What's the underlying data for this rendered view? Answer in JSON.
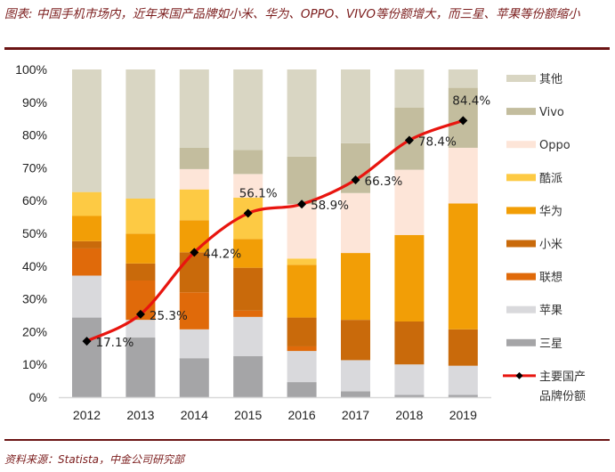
{
  "caption": "图表: 中国手机市场内，近年来国产品牌如小米、华为、OPPO、VIVO等份额增大，而三星、苹果等份额缩小",
  "source": "资料来源：Statista，中金公司研究部",
  "chart_data": {
    "type": "bar",
    "stacked": true,
    "title": "图表: 中国手机市场内，近年来国产品牌如小米、华为、OPPO、VIVO等份额增大，而三星、苹果等份额缩小",
    "xlabel": "",
    "ylabel": "",
    "ylim": [
      0,
      100
    ],
    "y_ticks": [
      "0%",
      "10%",
      "20%",
      "30%",
      "40%",
      "50%",
      "60%",
      "70%",
      "80%",
      "90%",
      "100%"
    ],
    "categories": [
      "2012",
      "2013",
      "2014",
      "2015",
      "2016",
      "2017",
      "2018",
      "2019"
    ],
    "legend_position": "right",
    "grid": false,
    "series": [
      {
        "name": "三星",
        "color": "#a5a5a7",
        "values": [
          24.3,
          18.2,
          11.9,
          12.5,
          4.6,
          1.8,
          0.7,
          0.7
        ]
      },
      {
        "name": "苹果",
        "color": "#d9d9dc",
        "values": [
          12.8,
          5.4,
          8.8,
          12.0,
          9.5,
          9.5,
          9.3,
          8.9
        ]
      },
      {
        "name": "联想",
        "color": "#e06a0a",
        "values": [
          8.3,
          12.0,
          11.3,
          1.9,
          1.4,
          0,
          0,
          0
        ]
      },
      {
        "name": "小米",
        "color": "#c96a0b",
        "values": [
          2.2,
          5.2,
          12.2,
          13.1,
          8.8,
          12.3,
          13.1,
          11.1
        ]
      },
      {
        "name": "华为",
        "color": "#f29e06",
        "values": [
          7.7,
          9.1,
          9.8,
          8.8,
          16.1,
          20.4,
          26.4,
          38.4
        ]
      },
      {
        "name": "酷派",
        "color": "#fdca44",
        "values": [
          7.3,
          10.7,
          9.4,
          12.6,
          1.9,
          0,
          0,
          0
        ]
      },
      {
        "name": "Oppo",
        "color": "#fde5d8",
        "values": [
          0,
          0,
          6.2,
          7.2,
          16.6,
          18.3,
          19.9,
          17.0
        ]
      },
      {
        "name": "Vivo",
        "color": "#c3bd9e",
        "values": [
          0,
          0,
          6.5,
          7.3,
          14.5,
          15.2,
          19.0,
          18.3
        ]
      },
      {
        "name": "其他",
        "color": "#d9d6c3",
        "values": [
          37.4,
          39.4,
          23.9,
          24.6,
          26.6,
          22.5,
          11.6,
          5.6
        ]
      }
    ],
    "line_series": {
      "name": "主要国产品牌份额",
      "color": "#e8150f",
      "marker_color": "#000000",
      "values": [
        17.1,
        25.3,
        44.2,
        56.1,
        58.9,
        66.3,
        78.4,
        84.4
      ],
      "labels": [
        "17.1%",
        "25.3%",
        "44.2%",
        "56.1%",
        "58.9%",
        "66.3%",
        "78.4%",
        "84.4%"
      ]
    },
    "legend": [
      "其他",
      "Vivo",
      "Oppo",
      "酷派",
      "华为",
      "小米",
      "联想",
      "苹果",
      "三星",
      "主要国产品牌份额"
    ]
  }
}
